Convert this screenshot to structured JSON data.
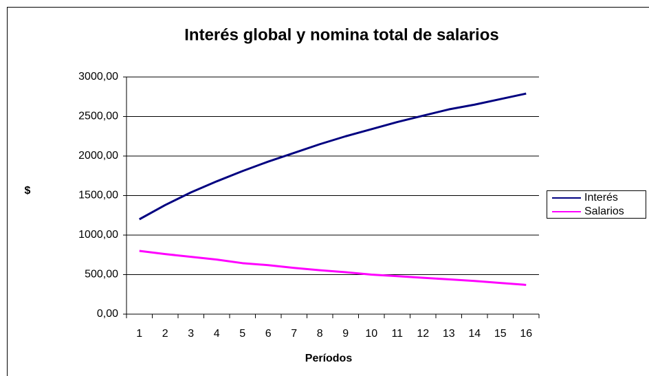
{
  "chart_data": {
    "type": "line",
    "title": "Interés global y nomina total de salarios",
    "y_label": "$",
    "x_label": "Períodos",
    "categories": [
      "1",
      "2",
      "3",
      "4",
      "5",
      "6",
      "7",
      "8",
      "9",
      "10",
      "11",
      "12",
      "13",
      "14",
      "15",
      "16"
    ],
    "series": [
      {
        "name": "Interés",
        "color": "#000080",
        "values": [
          1200,
          1380,
          1540,
          1680,
          1810,
          1930,
          2040,
          2150,
          2250,
          2340,
          2430,
          2510,
          2590,
          2650,
          2720,
          2790
        ]
      },
      {
        "name": "Salarios",
        "color": "#ff00ff",
        "values": [
          800,
          760,
          725,
          690,
          645,
          620,
          585,
          555,
          530,
          500,
          480,
          460,
          440,
          420,
          395,
          370
        ]
      }
    ],
    "ylim": [
      0,
      3000
    ],
    "yticks": [
      {
        "value": 0,
        "label": "0,00"
      },
      {
        "value": 500,
        "label": "500,00"
      },
      {
        "value": 1000,
        "label": "1000,00"
      },
      {
        "value": 1500,
        "label": "1500,00"
      },
      {
        "value": 2000,
        "label": "2000,00"
      },
      {
        "value": 2500,
        "label": "2500,00"
      },
      {
        "value": 3000,
        "label": "3000,00"
      }
    ],
    "grid": true,
    "legend": "right"
  }
}
